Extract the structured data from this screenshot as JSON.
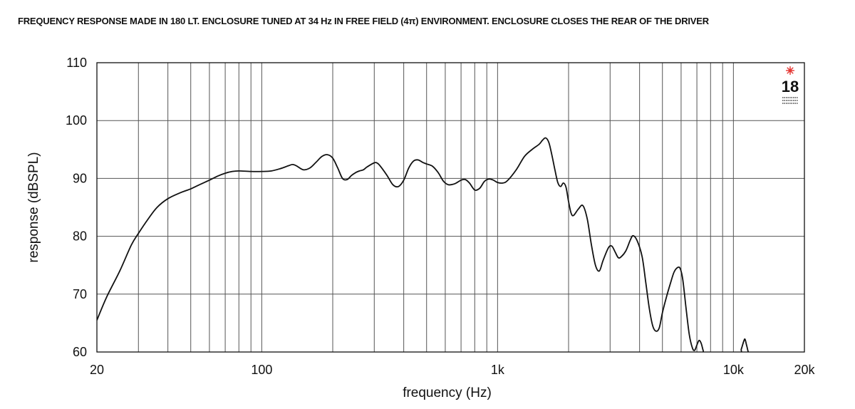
{
  "chart_data": {
    "type": "line",
    "title": "FREQUENCY RESPONSE MADE IN 180 LT. ENCLOSURE TUNED AT 34 Hz IN FREE FIELD (4π) ENVIRONMENT. ENCLOSURE CLOSES THE REAR OF THE DRIVER",
    "xlabel": "frequency (Hz)",
    "ylabel": "response (dBSPL)",
    "x_scale": "log",
    "xlim": [
      20,
      20000
    ],
    "ylim": [
      60,
      110
    ],
    "x_tick_labels": [
      {
        "value": 20,
        "label": "20"
      },
      {
        "value": 100,
        "label": "100"
      },
      {
        "value": 1000,
        "label": "1k"
      },
      {
        "value": 10000,
        "label": "10k"
      },
      {
        "value": 20000,
        "label": "20k"
      }
    ],
    "y_ticks": [
      60,
      70,
      80,
      90,
      100,
      110
    ],
    "grid": true,
    "logo": {
      "text": "18",
      "accent_color": "#e53935"
    },
    "series": [
      {
        "points": [
          [
            20,
            65.5
          ],
          [
            22,
            69.5
          ],
          [
            25,
            74
          ],
          [
            28,
            78.5
          ],
          [
            30,
            80.5
          ],
          [
            33,
            83
          ],
          [
            36,
            85
          ],
          [
            40,
            86.5
          ],
          [
            45,
            87.5
          ],
          [
            50,
            88.2
          ],
          [
            55,
            89
          ],
          [
            60,
            89.7
          ],
          [
            65,
            90.4
          ],
          [
            70,
            90.9
          ],
          [
            75,
            91.2
          ],
          [
            80,
            91.3
          ],
          [
            90,
            91.2
          ],
          [
            100,
            91.2
          ],
          [
            110,
            91.3
          ],
          [
            120,
            91.7
          ],
          [
            130,
            92.2
          ],
          [
            135,
            92.4
          ],
          [
            140,
            92.2
          ],
          [
            150,
            91.5
          ],
          [
            160,
            91.8
          ],
          [
            170,
            92.8
          ],
          [
            180,
            93.8
          ],
          [
            190,
            94.1
          ],
          [
            200,
            93.5
          ],
          [
            210,
            91.8
          ],
          [
            220,
            90
          ],
          [
            230,
            89.8
          ],
          [
            240,
            90.5
          ],
          [
            250,
            91
          ],
          [
            260,
            91.3
          ],
          [
            270,
            91.5
          ],
          [
            280,
            92
          ],
          [
            300,
            92.7
          ],
          [
            310,
            92.6
          ],
          [
            320,
            92
          ],
          [
            340,
            90.5
          ],
          [
            360,
            88.9
          ],
          [
            380,
            88.6
          ],
          [
            400,
            89.7
          ],
          [
            420,
            91.8
          ],
          [
            440,
            93
          ],
          [
            460,
            93.2
          ],
          [
            480,
            92.8
          ],
          [
            500,
            92.5
          ],
          [
            530,
            92.1
          ],
          [
            560,
            91
          ],
          [
            590,
            89.5
          ],
          [
            620,
            88.9
          ],
          [
            660,
            89.1
          ],
          [
            700,
            89.7
          ],
          [
            730,
            89.8
          ],
          [
            760,
            89.2
          ],
          [
            800,
            88
          ],
          [
            840,
            88.3
          ],
          [
            880,
            89.5
          ],
          [
            920,
            89.9
          ],
          [
            960,
            89.7
          ],
          [
            1000,
            89.3
          ],
          [
            1050,
            89.2
          ],
          [
            1100,
            89.6
          ],
          [
            1200,
            91.5
          ],
          [
            1300,
            93.8
          ],
          [
            1400,
            95
          ],
          [
            1500,
            95.9
          ],
          [
            1550,
            96.6
          ],
          [
            1600,
            97
          ],
          [
            1650,
            96.2
          ],
          [
            1700,
            94
          ],
          [
            1750,
            91.5
          ],
          [
            1800,
            89.3
          ],
          [
            1850,
            88.6
          ],
          [
            1900,
            89.2
          ],
          [
            1950,
            88.5
          ],
          [
            2000,
            86
          ],
          [
            2050,
            84
          ],
          [
            2100,
            83.6
          ],
          [
            2200,
            84.7
          ],
          [
            2300,
            85.3
          ],
          [
            2400,
            83
          ],
          [
            2500,
            78.5
          ],
          [
            2600,
            75
          ],
          [
            2700,
            74
          ],
          [
            2800,
            75.8
          ],
          [
            2950,
            78
          ],
          [
            3050,
            78.3
          ],
          [
            3150,
            77.3
          ],
          [
            3250,
            76.3
          ],
          [
            3350,
            76.5
          ],
          [
            3500,
            77.5
          ],
          [
            3650,
            79.3
          ],
          [
            3750,
            80.1
          ],
          [
            3900,
            79.3
          ],
          [
            4100,
            76.5
          ],
          [
            4250,
            72
          ],
          [
            4400,
            67.5
          ],
          [
            4550,
            64.5
          ],
          [
            4700,
            63.6
          ],
          [
            4850,
            64.2
          ],
          [
            5000,
            66.8
          ],
          [
            5200,
            69.5
          ],
          [
            5400,
            71.8
          ],
          [
            5600,
            73.8
          ],
          [
            5800,
            74.6
          ],
          [
            5950,
            74.4
          ],
          [
            6100,
            72.5
          ],
          [
            6300,
            67.5
          ],
          [
            6500,
            63
          ],
          [
            6700,
            60.7
          ],
          [
            6850,
            60.3
          ],
          [
            7000,
            61.2
          ],
          [
            7150,
            62
          ],
          [
            7300,
            61.5
          ],
          [
            7450,
            60.2
          ],
          [
            7600,
            59.4
          ],
          [
            10500,
            59.4
          ],
          [
            10800,
            60.5
          ],
          [
            11050,
            61.8
          ],
          [
            11200,
            62.2
          ],
          [
            11400,
            61
          ],
          [
            11700,
            59.6
          ],
          [
            12500,
            59.4
          ]
        ]
      }
    ]
  }
}
